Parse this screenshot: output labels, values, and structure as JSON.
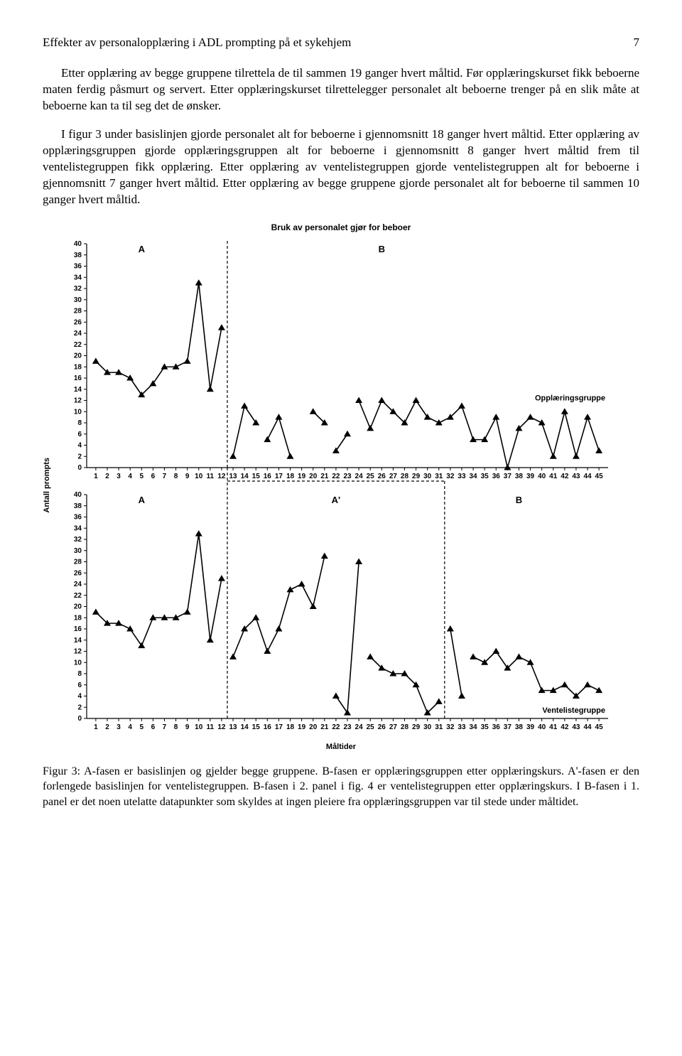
{
  "header": {
    "title": "Effekter av personalopplæring i ADL prompting på et sykehjem",
    "page": "7"
  },
  "paragraphs": {
    "p1": "Etter opplæring av begge gruppene tilrettela de til sammen 19 ganger hvert måltid. Før opplæringskurset fikk beboerne maten ferdig påsmurt og servert. Etter opplæringskurset tilrettelegger personalet alt beboerne trenger på en slik måte at beboerne kan ta til seg det de ønsker.",
    "p2": "I figur 3 under basislinjen gjorde personalet alt for beboerne i gjennomsnitt 18 ganger hvert måltid. Etter opplæring av opplæringsgruppen gjorde opplæringsgruppen alt for beboerne i gjennomsnitt 8 ganger hvert måltid frem til ventelistegruppen fikk opplæring. Etter opplæring av ventelistegruppen gjorde ventelistegruppen alt for beboerne i gjennomsnitt 7 ganger hvert måltid. Etter opplæring av begge gruppene gjorde personalet alt for beboerne til sammen 10 ganger hvert måltid."
  },
  "chart": {
    "type": "line-multi-panel",
    "title": "Bruk av personalet gjør for beboer",
    "y_label": "Antall prompts",
    "x_label": "Måltider",
    "background_color": "#ffffff",
    "axis_color": "#000000",
    "line_color": "#000000",
    "marker_shape": "triangle",
    "marker_size": 5,
    "line_width": 1.6,
    "phase_line_dash": "4,3",
    "tick_fontsize": 10,
    "label_fontsize": 11,
    "title_fontsize": 12,
    "x_ticks": [
      1,
      2,
      3,
      4,
      5,
      6,
      7,
      8,
      9,
      10,
      11,
      12,
      13,
      14,
      15,
      16,
      17,
      18,
      19,
      20,
      21,
      22,
      23,
      24,
      25,
      26,
      27,
      28,
      29,
      30,
      31,
      32,
      33,
      34,
      35,
      36,
      37,
      38,
      39,
      40,
      41,
      42,
      43,
      44,
      45
    ],
    "y_ticks": [
      0,
      2,
      4,
      6,
      8,
      10,
      12,
      14,
      16,
      18,
      20,
      22,
      24,
      26,
      28,
      30,
      32,
      34,
      36,
      38,
      40
    ],
    "xlim": [
      0.2,
      45.8
    ],
    "ylim": [
      0,
      40
    ],
    "panel1": {
      "series_label": "Opplæringsgruppe",
      "phase_split": 12.5,
      "phases": {
        "A": "A",
        "B": "B"
      },
      "segments": [
        {
          "x": [
            1,
            2,
            3,
            4,
            5,
            6,
            7,
            8,
            9,
            10,
            11,
            12
          ],
          "y": [
            19,
            17,
            17,
            16,
            13,
            15,
            18,
            18,
            19,
            33,
            14,
            25
          ]
        },
        {
          "x": [
            13,
            14,
            15
          ],
          "y": [
            2,
            11,
            8
          ]
        },
        {
          "x": [
            16,
            17,
            18
          ],
          "y": [
            5,
            9,
            2
          ]
        },
        {
          "x": [
            20,
            21
          ],
          "y": [
            10,
            8
          ]
        },
        {
          "x": [
            22,
            23
          ],
          "y": [
            3,
            6
          ]
        },
        {
          "x": [
            24,
            25,
            26,
            27,
            28,
            29,
            30,
            31,
            32,
            33,
            34,
            35,
            36,
            37,
            38,
            39,
            40,
            41,
            42,
            43,
            44,
            45
          ],
          "y": [
            12,
            7,
            12,
            10,
            8,
            12,
            9,
            8,
            9,
            11,
            5,
            5,
            9,
            0,
            7,
            9,
            8,
            2,
            10,
            2,
            9,
            3
          ]
        }
      ]
    },
    "panel2": {
      "series_label": "Ventelistegruppe",
      "phase_split_1": 12.5,
      "phase_split_2": 31.5,
      "phases": {
        "A": "A",
        "Aprime": "A'",
        "B": "B"
      },
      "segments": [
        {
          "x": [
            1,
            2,
            3,
            4,
            5,
            6,
            7,
            8,
            9,
            10,
            11,
            12
          ],
          "y": [
            19,
            17,
            17,
            16,
            13,
            18,
            18,
            18,
            19,
            33,
            14,
            25
          ]
        },
        {
          "x": [
            13,
            14,
            15,
            16,
            17,
            18,
            19,
            20,
            21
          ],
          "y": [
            11,
            16,
            18,
            12,
            16,
            23,
            24,
            20,
            29
          ]
        },
        {
          "x": [
            22,
            23,
            24
          ],
          "y": [
            4,
            1,
            28
          ]
        },
        {
          "x": [
            25,
            26,
            27,
            28,
            29,
            30,
            31
          ],
          "y": [
            11,
            9,
            8,
            8,
            6,
            1,
            3
          ]
        },
        {
          "x": [
            32,
            33
          ],
          "y": [
            16,
            4
          ]
        },
        {
          "x": [
            34,
            35,
            36,
            37,
            38,
            39,
            40,
            41,
            42,
            43,
            44,
            45
          ],
          "y": [
            11,
            10,
            12,
            9,
            11,
            10,
            5,
            5,
            6,
            4,
            6,
            5
          ]
        }
      ]
    }
  },
  "caption": {
    "text": "Figur 3: A-fasen er basislinjen og gjelder begge gruppene. B-fasen er opplæringsgruppen etter opplæringskurs. A'-fasen er den forlengede basislinjen for ventelistegruppen. B-fasen i 2. panel i fig. 4 er ventelistegruppen etter opplæringskurs. I B-fasen i 1. panel er det noen utelatte datapunkter som skyldes at ingen pleiere fra opplæringsgruppen var til stede under måltidet."
  }
}
